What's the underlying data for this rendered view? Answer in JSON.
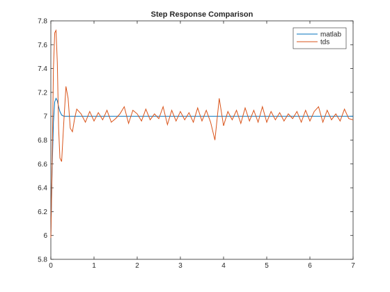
{
  "chart_data": {
    "type": "line",
    "title": "Step Response Comparison",
    "x": [
      0,
      0.03,
      0.06,
      0.09,
      0.12,
      0.15,
      0.18,
      0.21,
      0.25,
      0.3,
      0.35,
      0.4,
      0.45,
      0.5,
      0.55,
      0.6,
      0.7,
      0.8,
      0.9,
      1.0,
      1.1,
      1.2,
      1.3,
      1.4,
      1.5,
      1.6,
      1.7,
      1.8,
      1.9,
      2.0,
      2.1,
      2.2,
      2.3,
      2.4,
      2.5,
      2.6,
      2.7,
      2.8,
      2.9,
      3.0,
      3.1,
      3.2,
      3.3,
      3.4,
      3.5,
      3.6,
      3.7,
      3.8,
      3.9,
      4.0,
      4.1,
      4.2,
      4.3,
      4.4,
      4.5,
      4.6,
      4.7,
      4.8,
      4.9,
      5.0,
      5.1,
      5.2,
      5.3,
      5.4,
      5.5,
      5.6,
      5.7,
      5.8,
      5.9,
      6.0,
      6.1,
      6.2,
      6.3,
      6.4,
      6.5,
      6.6,
      6.7,
      6.8,
      6.9,
      7.0
    ],
    "series": [
      {
        "name": "matlab",
        "color": "#0072bd",
        "values": [
          5.98,
          6.55,
          6.95,
          7.12,
          7.15,
          7.13,
          7.08,
          7.04,
          7.01,
          7.0,
          7.0,
          7.0,
          7.0,
          7.0,
          7.0,
          7.0,
          7.0,
          7.0,
          7.0,
          7.0,
          7.0,
          7.0,
          7.0,
          7.0,
          7.0,
          7.0,
          7.0,
          7.0,
          7.0,
          7.0,
          7.0,
          7.0,
          7.0,
          7.0,
          7.0,
          7.0,
          7.0,
          7.0,
          7.0,
          7.0,
          7.0,
          7.0,
          7.0,
          7.0,
          7.0,
          7.0,
          7.0,
          7.0,
          7.0,
          7.0,
          7.0,
          7.0,
          7.0,
          7.0,
          7.0,
          7.0,
          7.0,
          7.0,
          7.0,
          7.0,
          7.0,
          7.0,
          7.0,
          7.0,
          7.0,
          7.0,
          7.0,
          7.0,
          7.0,
          7.0,
          7.0,
          7.0,
          7.0,
          7.0,
          7.0,
          7.0,
          7.0,
          7.0,
          7.0,
          7.0
        ]
      },
      {
        "name": "tds",
        "color": "#d95319",
        "values": [
          5.98,
          6.6,
          7.4,
          7.7,
          7.72,
          7.45,
          6.9,
          6.65,
          6.62,
          6.95,
          7.25,
          7.15,
          6.9,
          6.87,
          6.98,
          7.06,
          7.02,
          6.95,
          7.04,
          6.96,
          7.03,
          6.97,
          7.05,
          6.95,
          6.98,
          7.02,
          7.08,
          6.94,
          7.05,
          7.02,
          6.96,
          7.06,
          6.97,
          7.02,
          6.98,
          7.08,
          6.93,
          7.05,
          6.96,
          7.04,
          6.97,
          7.03,
          6.95,
          7.07,
          6.96,
          7.05,
          6.95,
          6.8,
          7.15,
          6.92,
          7.04,
          6.97,
          7.05,
          6.94,
          7.07,
          6.96,
          7.05,
          6.95,
          7.08,
          6.95,
          7.04,
          6.97,
          7.03,
          6.96,
          7.02,
          6.98,
          7.04,
          6.95,
          7.05,
          6.96,
          7.04,
          7.08,
          6.95,
          7.05,
          6.97,
          7.02,
          6.96,
          7.06,
          6.98,
          6.97
        ]
      }
    ],
    "xlim": [
      0,
      7
    ],
    "xticks": [
      0,
      1,
      2,
      3,
      4,
      5,
      6,
      7
    ],
    "ylim": [
      5.8,
      7.8
    ],
    "yticks": [
      5.8,
      6,
      6.2,
      6.4,
      6.6,
      6.8,
      7,
      7.2,
      7.4,
      7.6,
      7.8
    ],
    "legend": "northeast"
  }
}
